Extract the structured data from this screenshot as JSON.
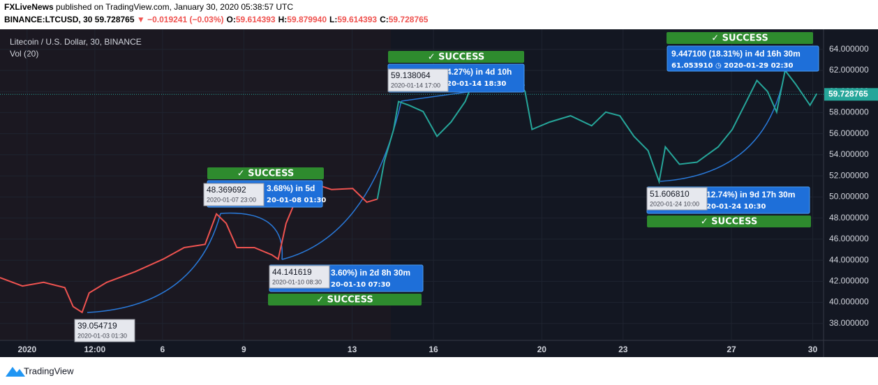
{
  "header": {
    "publisher": "FXLiveNews",
    "published": "published on TradingView.com, January 30, 2020 05:38:57 UTC",
    "symbol": "BINANCE:LTCUSD, 30",
    "price": "59.728765",
    "change": "▼ −0.019241 (−0.03%)",
    "ohlc": [
      {
        "label": "O:",
        "value": "59.614393"
      },
      {
        "label": "H:",
        "value": "59.879940"
      },
      {
        "label": "L:",
        "value": "59.614393"
      },
      {
        "label": "C:",
        "value": "59.728765"
      }
    ]
  },
  "footer": "TradingView",
  "chart_data": {
    "type": "line",
    "title": "Litecoin / U.S. Dollar, 30, BINANCE",
    "subtitle": "Vol (20)",
    "xlim": [
      0,
      30.4
    ],
    "ylim": [
      36.4,
      65.9
    ],
    "xticks": [
      {
        "value": 1,
        "label": "2020"
      },
      {
        "value": 3.5,
        "label": "12:00"
      },
      6,
      9,
      13,
      16,
      20,
      23,
      27,
      30
    ],
    "yticks": [
      {
        "value": 38,
        "label": "38.000000"
      },
      {
        "value": 40,
        "label": "40.000000"
      },
      {
        "value": 42,
        "label": "42.000000"
      },
      {
        "value": 44,
        "label": "44.000000"
      },
      {
        "value": 46,
        "label": "46.000000"
      },
      {
        "value": 48,
        "label": "48.000000"
      },
      {
        "value": 50,
        "label": "50.000000"
      },
      {
        "value": 52,
        "label": "52.000000"
      },
      {
        "value": 54,
        "label": "54.000000"
      },
      {
        "value": 56,
        "label": "56.000000"
      },
      {
        "value": 58,
        "label": "58.000000"
      },
      {
        "value": 60,
        "label": "60.000000"
      },
      {
        "value": 62,
        "label": "62.000000"
      },
      {
        "value": 64,
        "label": "64.000000"
      }
    ],
    "grid": true,
    "last_price": 59.728765,
    "last_price_color": "#26a69a",
    "series": [
      {
        "color": "#ef5350",
        "x": [
          0,
          0.83,
          1.61,
          2.39,
          2.7,
          3.03,
          3.29,
          3.94,
          4.98,
          6.02,
          6.8,
          7.57,
          7.99,
          8.35,
          8.74,
          9.39,
          10.04,
          10.27,
          10.56,
          10.82,
          11.34,
          11.78,
          12.24,
          13.02,
          13.54,
          13.93
        ],
        "values": [
          42.35,
          41.55,
          41.9,
          41.4,
          39.6,
          39.05,
          40.9,
          41.9,
          42.9,
          44.1,
          45.2,
          45.5,
          48.4,
          47.5,
          45.2,
          45.2,
          44.5,
          44.1,
          47.5,
          49.1,
          49.1,
          51.1,
          50.7,
          50.8,
          49.5,
          49.8
        ]
      },
      {
        "color": "#26a69a",
        "x": [
          13.93,
          14.19,
          14.53,
          14.71,
          15.1,
          15.62,
          16.13,
          16.65,
          17.17,
          17.69,
          18.21,
          18.99,
          19.38,
          19.64,
          20.29,
          21.06,
          21.84,
          22.36,
          22.88,
          23.4,
          23.92,
          24.33,
          24.56,
          25.08,
          25.73,
          26.51,
          27.03,
          27.55,
          27.94,
          28.33,
          28.67,
          28.98,
          29.37,
          29.9,
          30.15
        ],
        "values": [
          49.8,
          53.4,
          56.4,
          59.05,
          58.7,
          58.1,
          55.75,
          57.1,
          59.05,
          62.35,
          60.0,
          61.4,
          60.0,
          56.4,
          57.1,
          57.7,
          56.75,
          58.05,
          57.7,
          55.75,
          54.4,
          51.45,
          54.75,
          53.1,
          53.3,
          54.75,
          56.4,
          59.05,
          61.05,
          60.0,
          58.05,
          62.0,
          60.7,
          58.7,
          59.8
        ]
      }
    ],
    "annotations": [
      {
        "badge": "✓ SUCCESS",
        "line1": "3.68%) in 5d",
        "line2": "20-01-08  01:30",
        "tip_value": "48.369692",
        "tip_date": "2020-01-07 23:00"
      },
      {
        "badge": "✓ SUCCESS",
        "line1": "3.60%) in 2d 8h 30m",
        "line2": "20-01-10  07:30",
        "tip_value": "44.141619",
        "tip_date": "2020-01-10 08:30"
      },
      {
        "badge": "✓ SUCCESS",
        "line1": "4.27%) in 4d 10h",
        "line2": "20-01-14  18:30",
        "tip_value": "59.138064",
        "tip_date": "2020-01-14 17:00"
      },
      {
        "badge": "✓ SUCCESS",
        "line1": "9.447100 (18.31%) in 4d 16h 30m",
        "line2": "61.053910 ◷ 2020-01-29  02:30"
      },
      {
        "badge": "✓ SUCCESS",
        "line1": "12.74%) in 9d 17h 30m",
        "line2": "20-01-24  10:30",
        "tip_value": "51.606810",
        "tip_date": "2020-01-24 10:00"
      },
      {
        "tip_value": "39.054719",
        "tip_date": "2020-01-03 01:30"
      }
    ]
  }
}
